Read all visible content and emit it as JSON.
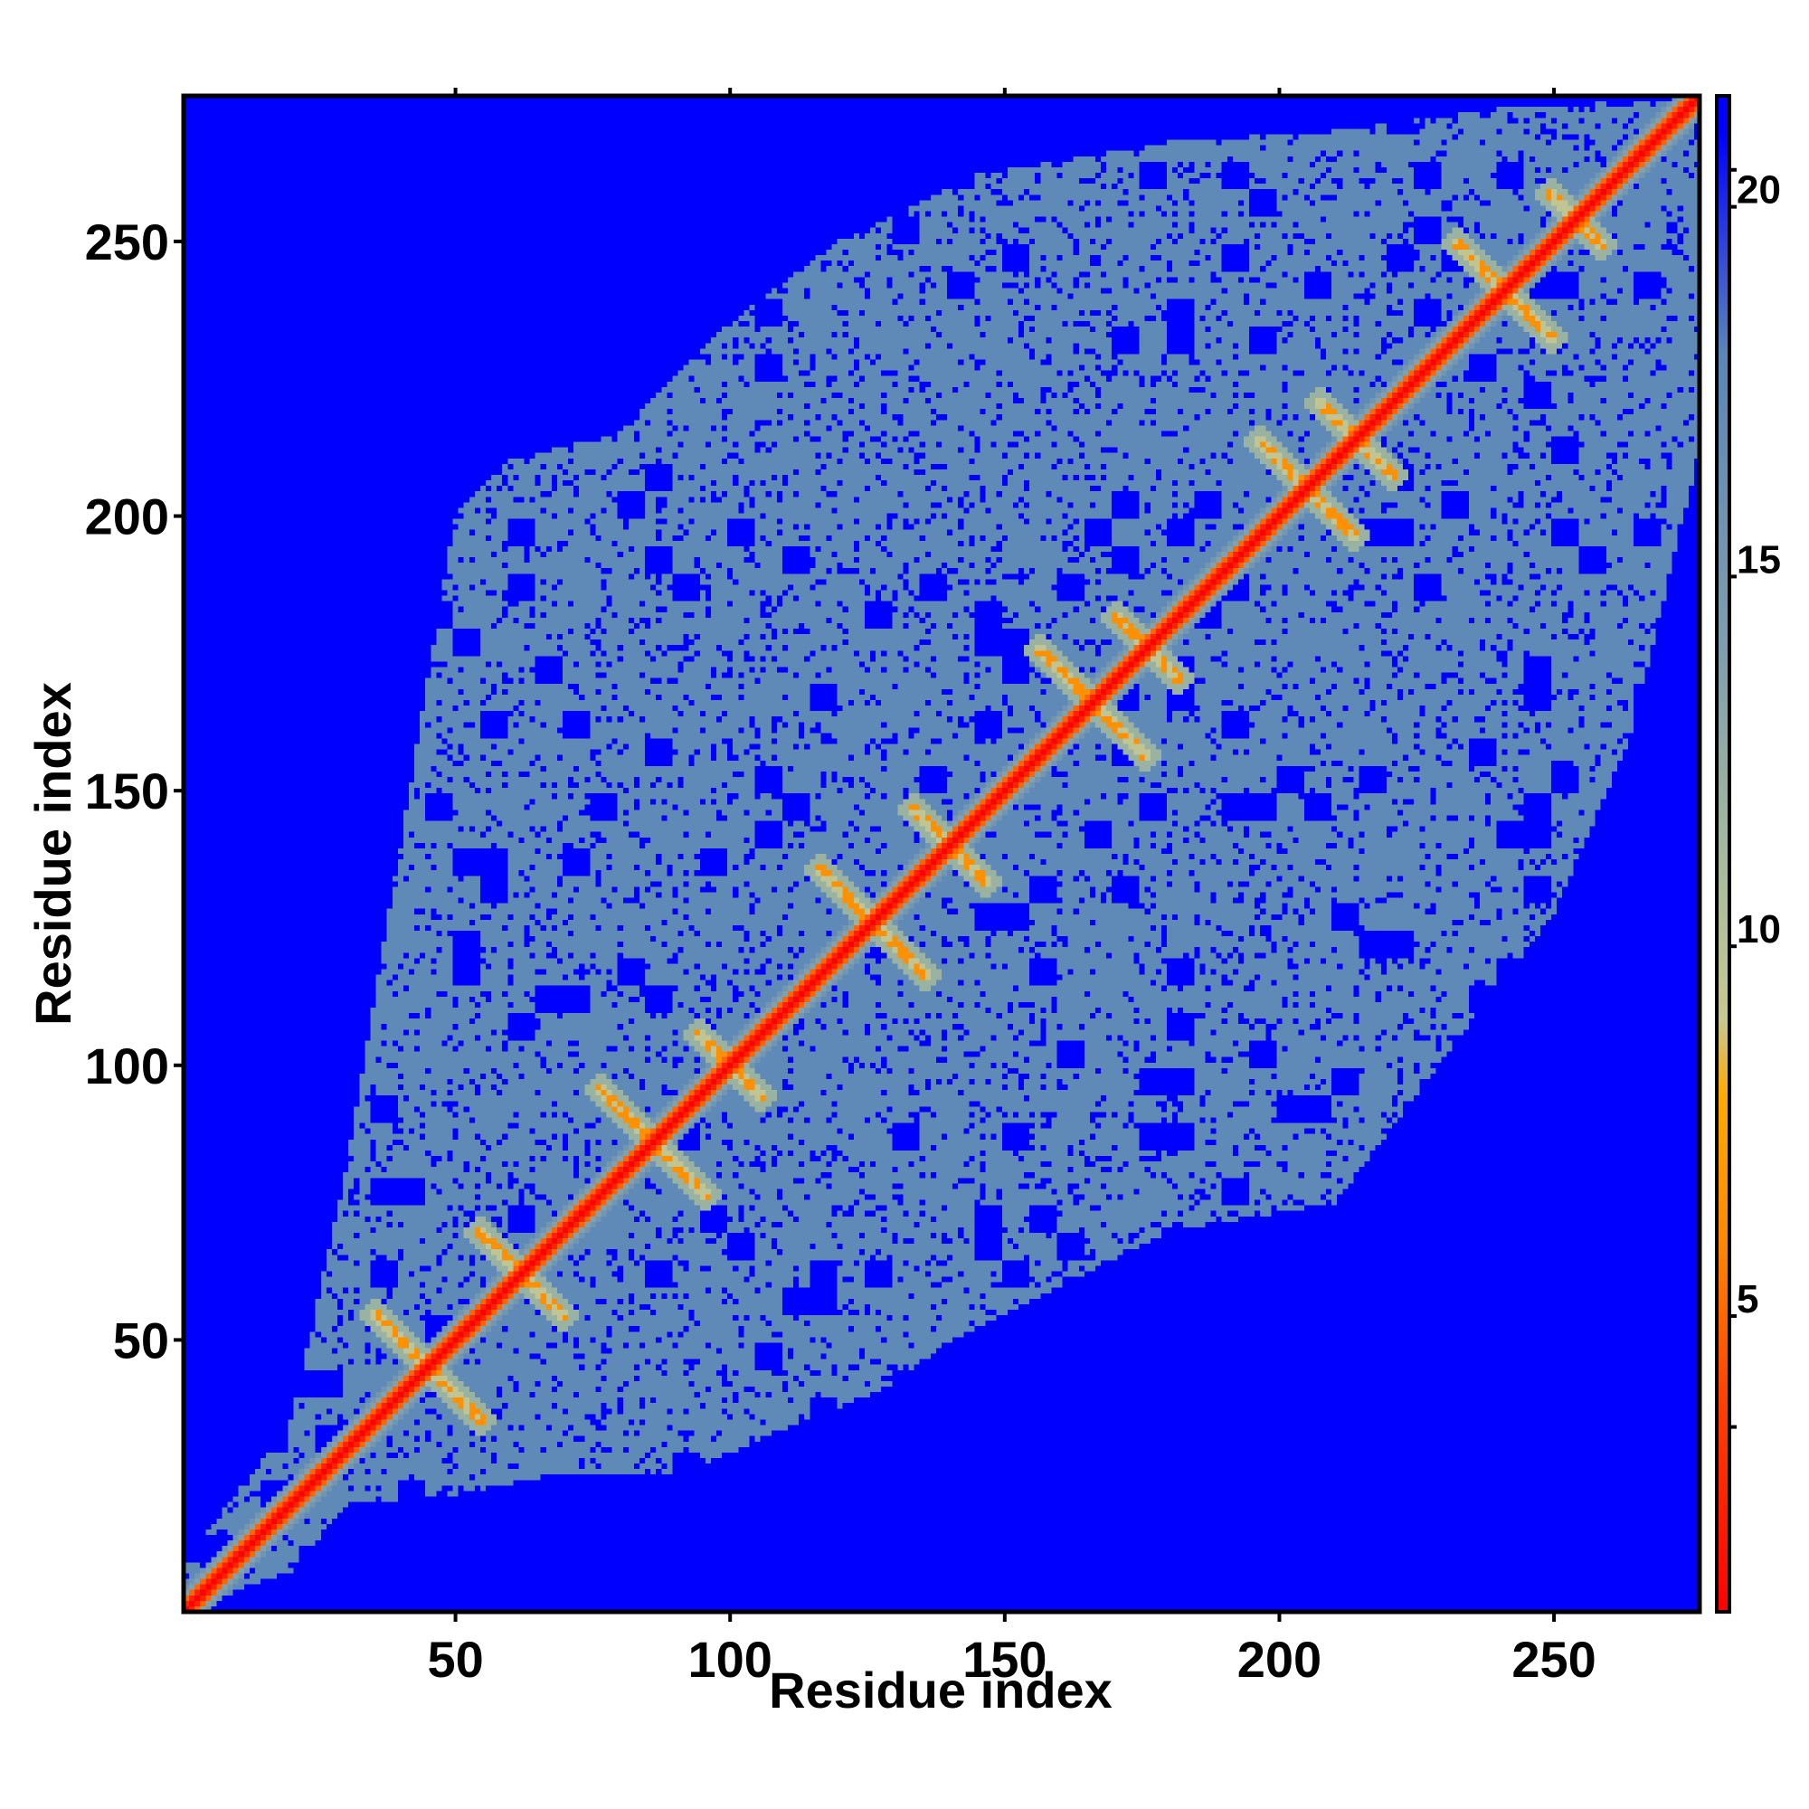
{
  "chart_data": {
    "type": "heatmap",
    "description_kind": "residue distance map",
    "xlabel": "Residue index",
    "ylabel": "Residue index",
    "xlim": [
      1,
      276
    ],
    "ylim": [
      1,
      276
    ],
    "x_ticks": [
      50,
      100,
      150,
      200,
      250
    ],
    "y_ticks": [
      50,
      100,
      150,
      200,
      250
    ],
    "colorbar": {
      "range": [
        1,
        21.5
      ],
      "ticks": [
        5,
        10,
        15,
        20
      ],
      "stops": [
        {
          "value": 1,
          "color": "#ff0000"
        },
        {
          "value": 4,
          "color": "#ff4400"
        },
        {
          "value": 6,
          "color": "#ff8800"
        },
        {
          "value": 8,
          "color": "#ffaa00"
        },
        {
          "value": 9,
          "color": "#c8c890"
        },
        {
          "value": 11,
          "color": "#a8bc9c"
        },
        {
          "value": 14,
          "color": "#7f9fae"
        },
        {
          "value": 18,
          "color": "#5a86b8"
        },
        {
          "value": 21,
          "color": "#0000ff"
        }
      ]
    },
    "colors": {
      "background_cutoff": "#0000ff",
      "mid_distance": "#5a86b8",
      "halo": "#c8c890",
      "contact": "#ff8800",
      "diagonal": "#ff0000"
    },
    "structure": {
      "diagonal_band_width": 2,
      "upper_envelope": [
        [
          1,
          10
        ],
        [
          20,
          35
        ],
        [
          30,
          80
        ],
        [
          40,
          140
        ],
        [
          50,
          200
        ],
        [
          60,
          210
        ],
        [
          80,
          215
        ],
        [
          100,
          235
        ],
        [
          120,
          250
        ],
        [
          145,
          262
        ],
        [
          180,
          268
        ],
        [
          210,
          270
        ],
        [
          240,
          274
        ],
        [
          276,
          276
        ]
      ],
      "lower_envelope": [
        [
          1,
          1
        ],
        [
          20,
          8
        ],
        [
          30,
          20
        ],
        [
          50,
          22
        ],
        [
          70,
          26
        ],
        [
          90,
          25
        ],
        [
          110,
          34
        ],
        [
          130,
          42
        ],
        [
          140,
          50
        ],
        [
          160,
          60
        ],
        [
          180,
          70
        ],
        [
          210,
          75
        ],
        [
          235,
          108
        ],
        [
          250,
          128
        ],
        [
          264,
          160
        ],
        [
          276,
          210
        ]
      ],
      "domain_crosses": [
        {
          "center": 45,
          "size": 10
        },
        {
          "center": 62,
          "size": 8
        },
        {
          "center": 86,
          "size": 10
        },
        {
          "center": 100,
          "size": 6
        },
        {
          "center": 126,
          "size": 10
        },
        {
          "center": 140,
          "size": 7
        },
        {
          "center": 166,
          "size": 10
        },
        {
          "center": 176,
          "size": 6
        },
        {
          "center": 205,
          "size": 9
        },
        {
          "center": 214,
          "size": 7
        },
        {
          "center": 241,
          "size": 9
        },
        {
          "center": 254,
          "size": 5
        }
      ]
    }
  }
}
